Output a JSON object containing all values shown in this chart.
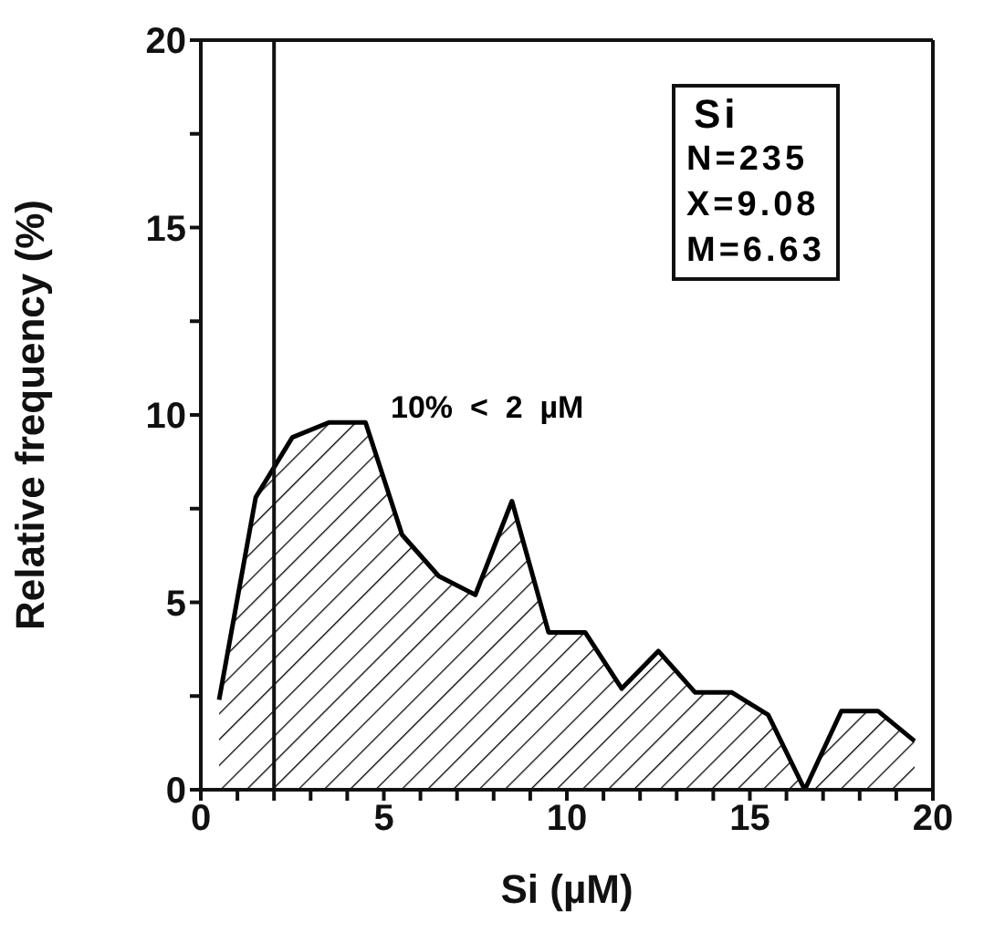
{
  "chart_data": {
    "type": "area",
    "xlabel": "Si  (µM)",
    "ylabel": "Relative  frequency  (%)",
    "x": [
      0.5,
      1.5,
      2.5,
      3.5,
      4.5,
      5.5,
      6.5,
      7.5,
      8.5,
      9.5,
      10.5,
      11.5,
      12.5,
      13.5,
      14.5,
      15.5,
      16.5,
      17.5,
      18.5,
      19.5
    ],
    "values": [
      2.4,
      7.8,
      9.4,
      9.8,
      9.8,
      6.8,
      5.7,
      5.2,
      7.7,
      4.2,
      4.2,
      2.7,
      3.7,
      2.6,
      2.6,
      2.0,
      0,
      2.1,
      2.1,
      1.3
    ],
    "color": "#000000",
    "xlim": [
      0,
      20
    ],
    "xticks": [
      0,
      {
        "value": 1,
        "label": null
      },
      {
        "value": 2,
        "label": null
      },
      {
        "value": 3,
        "label": null
      },
      {
        "value": 4,
        "label": null
      },
      5,
      {
        "value": 6,
        "label": null
      },
      {
        "value": 7,
        "label": null
      },
      {
        "value": 8,
        "label": null
      },
      {
        "value": 9,
        "label": null
      },
      10,
      {
        "value": 11,
        "label": null
      },
      {
        "value": 12,
        "label": null
      },
      {
        "value": 13,
        "label": null
      },
      {
        "value": 14,
        "label": null
      },
      15,
      {
        "value": 16,
        "label": null
      },
      {
        "value": 17,
        "label": null
      },
      {
        "value": 18,
        "label": null
      },
      {
        "value": 19,
        "label": null
      },
      20
    ],
    "ylim": [
      0,
      20
    ],
    "yticks": [
      0,
      {
        "value": 2.5,
        "label": null
      },
      5,
      {
        "value": 7.5,
        "label": null
      },
      10,
      {
        "value": 12.5,
        "label": null
      },
      15,
      {
        "value": 17.5,
        "label": null
      },
      20
    ],
    "ref_lines": [
      {
        "axis": "x",
        "value": 2,
        "label": null
      }
    ],
    "annotations": [
      "Si",
      "N=235",
      "X=9.08",
      "M=6.63",
      "10%  <  2  µM"
    ],
    "tick_labels": "xy"
  }
}
